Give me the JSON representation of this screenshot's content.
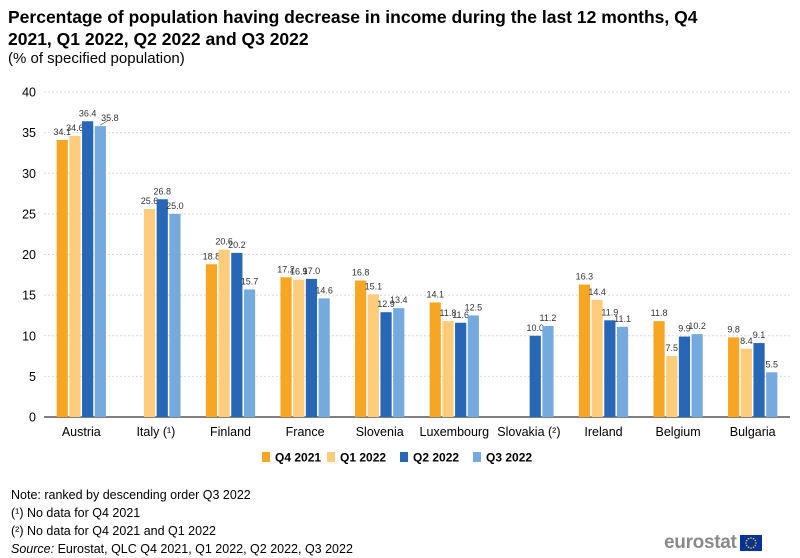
{
  "title": "Percentage of population having decrease in income during the last 12 months, Q4 2021, Q1 2022, Q2 2022 and Q3 2022",
  "subtitle": "(% of specified population)",
  "notes": [
    "Note: ranked by descending order Q3 2022",
    "(¹) No data for Q4 2021",
    "(²) No data for Q4 2021 and Q1 2022"
  ],
  "source_label": "Source:",
  "source_text": " Eurostat, QLC Q4 2021, Q1 2022, Q2 2022, Q3 2022",
  "logo_text": "eurostat",
  "colors": {
    "q4_2021": "#F6A623",
    "q1_2022": "#FDCD7C",
    "q2_2022": "#2767B6",
    "q3_2022": "#75AADF",
    "grid": "#d9d9d9",
    "eu_blue": "#003399",
    "eu_star": "#FFCC00"
  },
  "chart_data": {
    "type": "bar",
    "categories": [
      "Austria",
      "Italy (¹)",
      "Finland",
      "France",
      "Slovenia",
      "Luxembourg",
      "Slovakia (²)",
      "Ireland",
      "Belgium",
      "Bulgaria"
    ],
    "series": [
      {
        "name": "Q4 2021",
        "color": "#F6A623",
        "values": [
          34.1,
          null,
          18.8,
          17.2,
          16.8,
          14.1,
          null,
          16.3,
          11.8,
          9.8
        ]
      },
      {
        "name": "Q1 2022",
        "color": "#FDCD7C",
        "values": [
          34.6,
          25.6,
          20.6,
          16.9,
          15.1,
          11.8,
          null,
          14.4,
          7.5,
          8.4
        ]
      },
      {
        "name": "Q2 2022",
        "color": "#2767B6",
        "values": [
          36.4,
          26.8,
          20.2,
          17.0,
          12.9,
          11.6,
          10.0,
          11.9,
          9.9,
          9.1
        ]
      },
      {
        "name": "Q3 2022",
        "color": "#75AADF",
        "values": [
          35.8,
          25.0,
          15.7,
          14.6,
          13.4,
          12.5,
          11.2,
          11.1,
          10.2,
          5.5
        ]
      }
    ],
    "ylim": [
      0,
      40
    ],
    "yticks": [
      0,
      5,
      10,
      15,
      20,
      25,
      30,
      35,
      40
    ],
    "grid": true,
    "legend": "bottom-center",
    "xlabel": "",
    "ylabel": ""
  }
}
